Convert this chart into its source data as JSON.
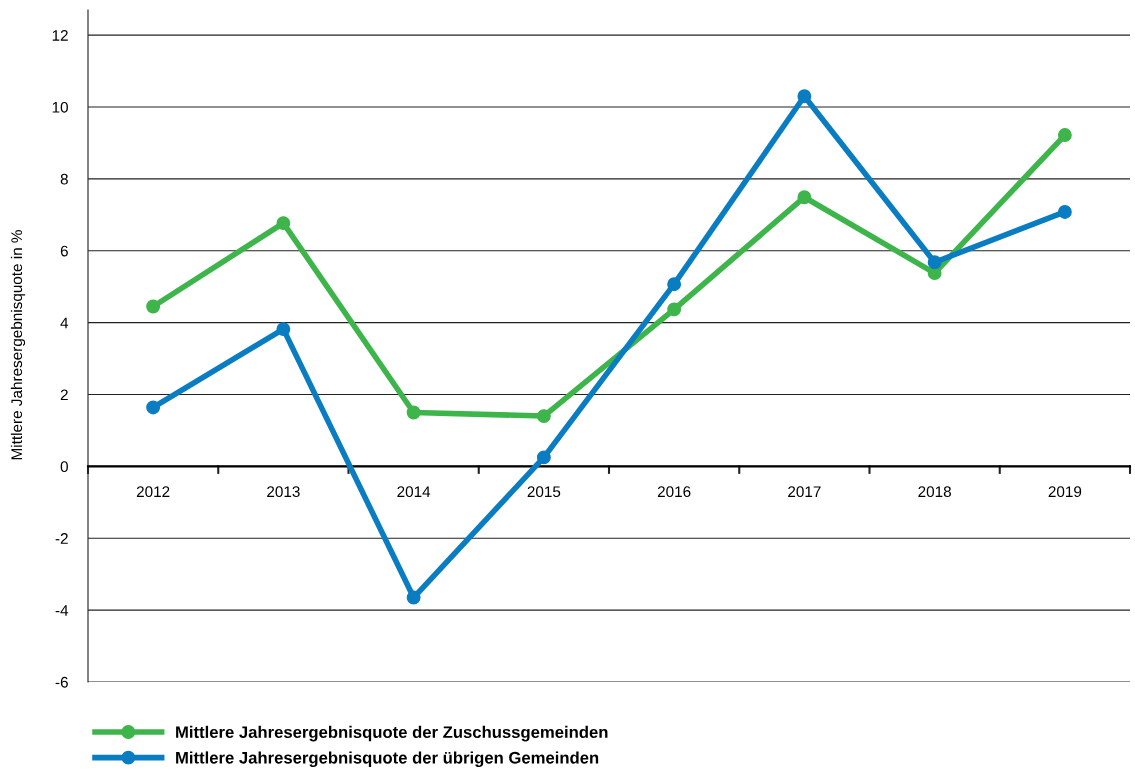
{
  "chart_data": {
    "type": "line",
    "ylabel": "Mittlere Jahresergebnisquote in %",
    "categories": [
      "2012",
      "2013",
      "2014",
      "2015",
      "2016",
      "2017",
      "2018",
      "2019"
    ],
    "series": [
      {
        "name": "Mittlere Jahresergebnisquote der Zuschussgemeinden",
        "color": "#3db54a",
        "values": [
          4.45,
          6.77,
          1.5,
          1.4,
          4.37,
          7.49,
          5.38,
          9.22
        ]
      },
      {
        "name": "Mittlere Jahresergebnisquote der übrigen Gemeinden",
        "color": "#0a7dc2",
        "values": [
          1.64,
          3.82,
          -3.65,
          0.25,
          5.07,
          10.3,
          5.68,
          7.08
        ]
      }
    ],
    "ylim": [
      -6,
      12.7
    ],
    "yticks": [
      -6,
      -4,
      -2,
      0,
      2,
      4,
      6,
      8,
      10,
      12
    ],
    "grid": "y",
    "legend": "bottom",
    "marker": "circle",
    "line_style": "solid"
  }
}
